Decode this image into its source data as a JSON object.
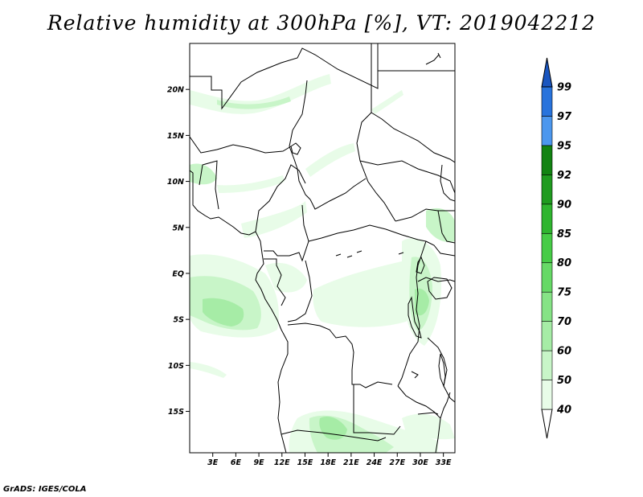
{
  "title": "Relative humidity at 300hPa [%], VT: 2019042212",
  "credit": "GrADS: IGES/COLA",
  "map": {
    "lat_range": [
      -19.5,
      25
    ],
    "lon_range": [
      0,
      34.5
    ],
    "lat_ticks": [
      {
        "value": 20,
        "label": "20N"
      },
      {
        "value": 15,
        "label": "15N"
      },
      {
        "value": 10,
        "label": "10N"
      },
      {
        "value": 5,
        "label": "5N"
      },
      {
        "value": 0,
        "label": "EQ"
      },
      {
        "value": -5,
        "label": "5S"
      },
      {
        "value": -10,
        "label": "10S"
      },
      {
        "value": -15,
        "label": "15S"
      }
    ],
    "lon_ticks": [
      {
        "value": 3,
        "label": "3E"
      },
      {
        "value": 6,
        "label": "6E"
      },
      {
        "value": 9,
        "label": "9E"
      },
      {
        "value": 12,
        "label": "12E"
      },
      {
        "value": 15,
        "label": "15E"
      },
      {
        "value": 18,
        "label": "18E"
      },
      {
        "value": 21,
        "label": "21E"
      },
      {
        "value": 24,
        "label": "24E"
      },
      {
        "value": 27,
        "label": "27E"
      },
      {
        "value": 30,
        "label": "30E"
      },
      {
        "value": 33,
        "label": "33E"
      }
    ]
  },
  "colorbar": {
    "levels": [
      "40",
      "50",
      "60",
      "70",
      "75",
      "80",
      "85",
      "90",
      "92",
      "95",
      "97",
      "99"
    ],
    "colors": [
      "#ffffff",
      "#e8fce8",
      "#c8f5c8",
      "#a6eca6",
      "#86e386",
      "#66d966",
      "#46cc46",
      "#2fb52f",
      "#1f9b1f",
      "#128312",
      "#4c97ee",
      "#2873dc",
      "#1a56c0"
    ]
  }
}
